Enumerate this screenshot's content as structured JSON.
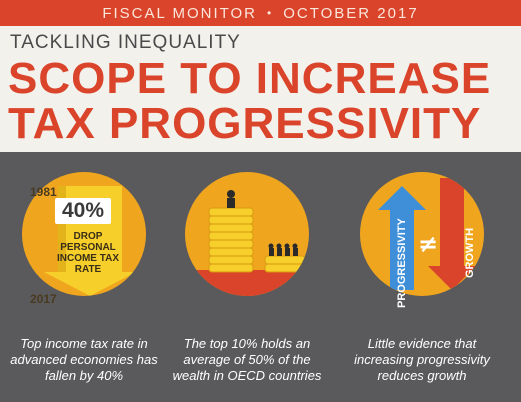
{
  "header": {
    "publication": "FISCAL MONITOR",
    "separator": "•",
    "date": "OCTOBER 2017",
    "subtitle": "TACKLING INEQUALITY",
    "title_line1": "SCOPE TO INCREASE",
    "title_line2": "TAX PROGRESSIVITY"
  },
  "colors": {
    "accent_red": "#d9442a",
    "circle_orange": "#f0a51f",
    "background_gray": "#5a5a5c",
    "header_bg": "#f3f1ec"
  },
  "panels": [
    {
      "icon": "down-arrow-icon",
      "year_start": "1981",
      "year_end": "2017",
      "percent": "40%",
      "arrow_text": "DROP PERSONAL INCOME TAX RATE",
      "caption": "Top income tax rate in advanced economies has fallen by 40%"
    },
    {
      "icon": "coin-stacks-icon",
      "caption": "The top 10% holds an average of 50% of the wealth in OECD countries"
    },
    {
      "icon": "progressivity-growth-arrows-icon",
      "label_up": "PROGRESSIVITY",
      "symbol": "≠",
      "label_down": "GROWTH",
      "caption": "Little evidence that increasing progressivity reduces growth"
    }
  ]
}
